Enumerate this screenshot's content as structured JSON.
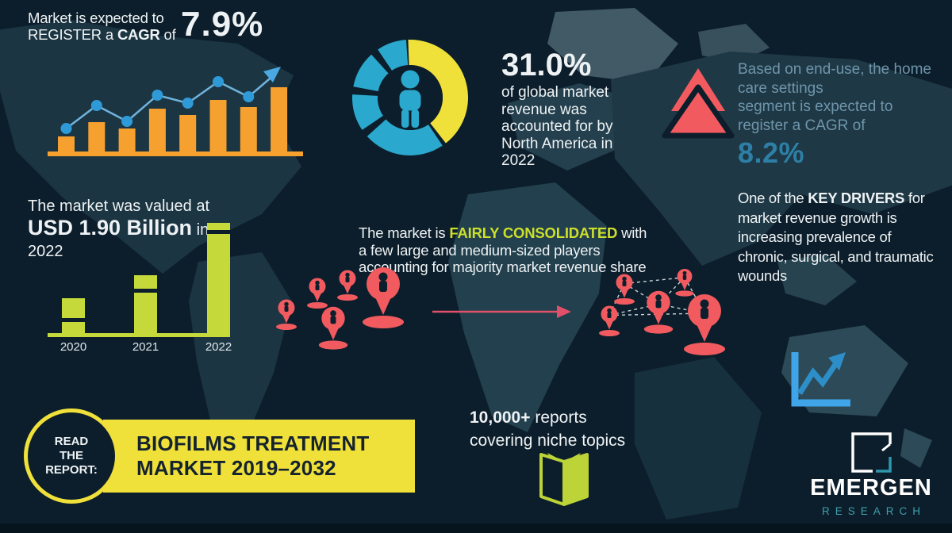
{
  "colors": {
    "background": "#0c1e2b",
    "bottom_strip": "#06141d",
    "map_base": "#1d3643",
    "map_light": "#2e4955",
    "map_lighter": "#415a66",
    "orange": "#f6a12f",
    "dot_blue": "#2f9ad8",
    "line_blue": "#6fb3dd",
    "teal": "#2aa8cd",
    "yellow": "#f0e03a",
    "coral": "#f15b5f",
    "arrow_red": "#e0506a",
    "lime": "#c5da3a",
    "steel_text": "#6f95ab",
    "blue_value": "#2e7fa6",
    "dark_text": "#15232e",
    "logo_teal": "#3f9fae",
    "icon_blue": "#3fa5e8"
  },
  "header": {
    "line1": "Market is expected to",
    "line2_pre": "REGISTER a ",
    "line2_bold": "CAGR",
    "line2_post": " of",
    "value": "7.9%"
  },
  "north_america": {
    "value": "31.0%",
    "lines": [
      "of global market",
      "revenue was",
      "accounted for by",
      "North America in",
      "2022"
    ]
  },
  "home_care": {
    "lines": [
      "Based on end-use, the home",
      "care settings",
      "segment is expected to",
      "register a CAGR of"
    ],
    "value": "8.2%"
  },
  "market_value": {
    "line1": "The market was valued at",
    "bold": "USD 1.90 Billion",
    "suffix": " in",
    "line3": "2022"
  },
  "consolidation": {
    "line1_pre": "The market is ",
    "highlight": "FAIRLY CONSOLIDATED",
    "line1_post": " with",
    "line2": "a few large and medium-sized players",
    "line3": "accounting for majority market revenue share"
  },
  "key_drivers": {
    "line1_pre": "One of the ",
    "bold": "KEY DRIVERS",
    "line1_post": " for",
    "lines": [
      "market revenue growth is",
      "increasing prevalence of",
      "chronic, surgical, and traumatic",
      "wounds"
    ]
  },
  "read_report": {
    "circle_lines": [
      "READ",
      "THE",
      "REPORT:"
    ],
    "title_line1": "BIOFILMS TREATMENT",
    "title_line2": "MARKET 2019–2032"
  },
  "reports": {
    "bold": "10,000+",
    "line1_post": " reports",
    "line2": "covering niche topics"
  },
  "logo": {
    "name": "EMERGEN",
    "sub": "RESEARCH"
  },
  "icons": {
    "map-pin-icon": "coral location pin with person silhouette",
    "person-icon": "teal standing person pictogram inside donut",
    "double-up-arrow-icon": "two stacked coral upward triangles",
    "book-icon": "lime open book",
    "line-chart-icon": "blue axis with rising zigzag arrow",
    "trend-arrow-icon": "blue arrow at end of trend line",
    "logo-square-icon": "white square with teal corner"
  },
  "chart_data": [
    {
      "type": "bar",
      "name": "cagr-growth-trend",
      "title": "Market is expected to REGISTER a CAGR of 7.9%",
      "categories": [
        "",
        "",
        "",
        "",
        "",
        "",
        "",
        ""
      ],
      "values": [
        1.9,
        3.7,
        2.9,
        5.4,
        4.6,
        6.5,
        5.6,
        8.1
      ],
      "line_values": [
        2.9,
        5.8,
        3.8,
        7.1,
        6.1,
        8.8,
        6.9
      ],
      "unit": "relative height (decorative trend)",
      "bar_color": "#f6a12f",
      "line_color": "#6fb3dd",
      "dot_color": "#2f9ad8",
      "grid": false,
      "annotation": "rising trend line ending in up-right arrow"
    },
    {
      "type": "pie",
      "name": "north-america-share-donut",
      "title": "31.0% of global market revenue was accounted for by North America in 2022",
      "labels": [
        "North America",
        "Rest of world"
      ],
      "values": [
        31.0,
        69.0
      ],
      "arcs": [
        {
          "color": "#f0e03a",
          "start": -2,
          "end": 142,
          "label": "North America"
        },
        {
          "color": "#2aa8cd",
          "start": 146,
          "end": 228,
          "label": "Rest of world"
        },
        {
          "color": "#2aa8cd",
          "start": 236,
          "end": 273,
          "label": "Rest of world"
        },
        {
          "color": "#2aa8cd",
          "start": 281,
          "end": 318,
          "label": "Rest of world"
        },
        {
          "color": "#2aa8cd",
          "start": 326,
          "end": 356,
          "label": "Rest of world"
        }
      ],
      "center_icon": "person-icon"
    },
    {
      "type": "bar",
      "name": "market-value-by-year",
      "title": "The market was valued at USD 1.90 Billion in 2022",
      "categories": [
        "2020",
        "2021",
        "2022"
      ],
      "values": [
        44,
        73,
        139
      ],
      "unit": "relative height; labeled point: 2022 = USD 1.90 Billion",
      "bar_color": "#c5da3a",
      "stripe_offsets": [
        25,
        17,
        9
      ],
      "grid": false
    }
  ]
}
